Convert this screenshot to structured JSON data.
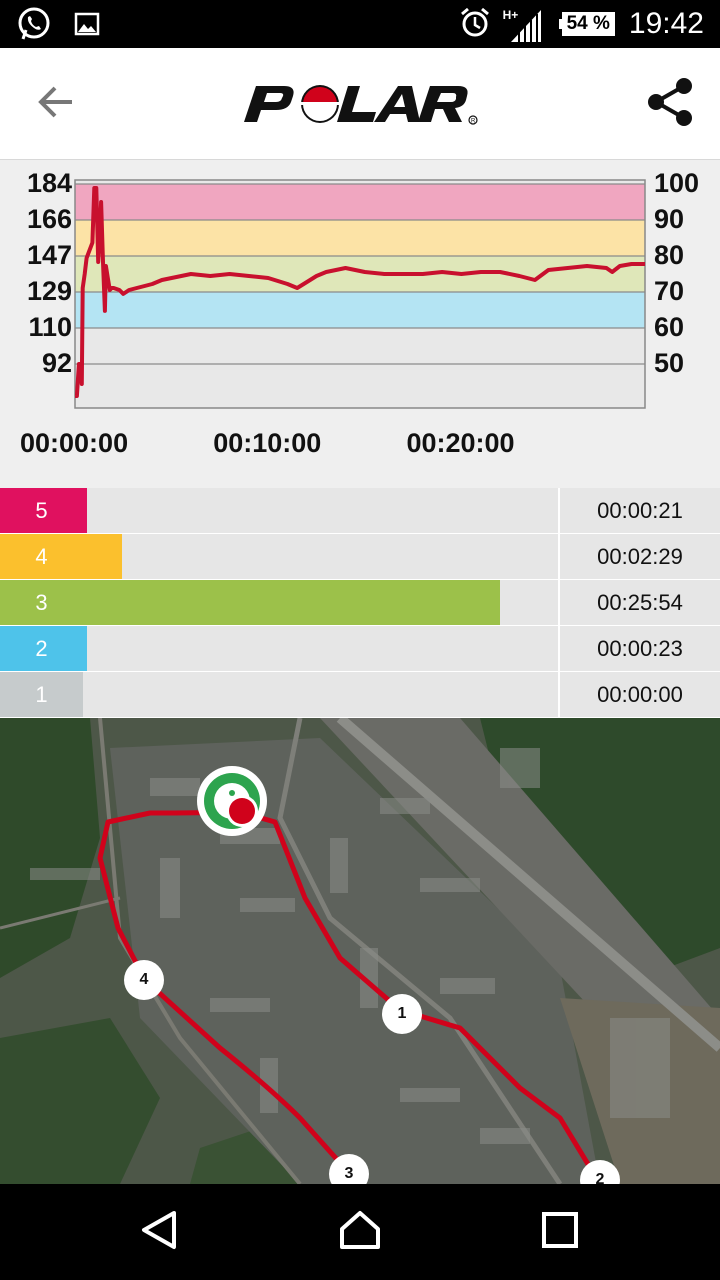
{
  "status_bar": {
    "time": "19:42",
    "battery": "54 %",
    "network": "H+",
    "icons": [
      "whatsapp-icon",
      "image-icon",
      "alarm-icon",
      "signal-icon",
      "battery-icon"
    ]
  },
  "app_bar": {
    "brand": "POLAR",
    "back_icon": "arrow-left-icon",
    "share_icon": "share-icon",
    "brand_color": "#d0021b"
  },
  "hr_chart": {
    "left_ticks": [
      "184",
      "166",
      "147",
      "129",
      "110",
      "92"
    ],
    "right_ticks": [
      "100",
      "90",
      "80",
      "70",
      "60",
      "50"
    ],
    "x_ticks": [
      "00:00:00",
      "00:10:00",
      "00:20:00"
    ]
  },
  "chart_data": {
    "type": "line",
    "title": "",
    "xlabel": "",
    "ylabel": "",
    "y_left_ticks": [
      184,
      166,
      147,
      129,
      110,
      92
    ],
    "y_right_ticks": [
      100,
      90,
      80,
      70,
      60,
      50
    ],
    "ylim": [
      74,
      184
    ],
    "x_ticks": [
      "00:00:00",
      "00:10:00",
      "00:20:00"
    ],
    "xlim_minutes": [
      0,
      29.5
    ],
    "zone_bands": [
      {
        "zone": 5,
        "from": 166,
        "to": 184,
        "color": "#f0a6c0"
      },
      {
        "zone": 4,
        "from": 147,
        "to": 166,
        "color": "#fce3a6"
      },
      {
        "zone": 3,
        "from": 129,
        "to": 147,
        "color": "#dfe7b9"
      },
      {
        "zone": 2,
        "from": 110,
        "to": 129,
        "color": "#b4e4f3"
      }
    ],
    "series": [
      {
        "color": "#c8102e",
        "x": [
          0,
          0.1,
          0.2,
          0.3,
          0.35,
          0.4,
          0.5,
          0.6,
          0.75,
          0.9,
          1.0,
          1.1,
          1.2,
          1.3,
          1.35,
          1.45,
          1.55,
          1.6,
          1.7,
          1.8,
          1.9,
          2.0,
          2.3,
          2.5,
          2.8,
          3.2,
          3.6,
          4.0,
          4.5,
          5.0,
          5.5,
          6.0,
          7.0,
          8.0,
          9.0,
          10.0,
          11.0,
          11.5,
          12.0,
          12.5,
          13.0,
          14.0,
          14.5,
          15.0,
          16.0,
          17.0,
          18.0,
          19.0,
          20.0,
          21.0,
          22.0,
          23.0,
          23.8,
          24.5,
          25.5,
          26.5,
          27.5,
          27.8,
          28.2,
          28.8,
          29.5
        ],
        "y": [
          76,
          76,
          92,
          92,
          82,
          131,
          138,
          146,
          150,
          154,
          182,
          182,
          144,
          162,
          175,
          144,
          119,
          142,
          136,
          130,
          131,
          131,
          130,
          128,
          130,
          131,
          132,
          133,
          135,
          136,
          137,
          138,
          137,
          138,
          137,
          136,
          133,
          131,
          134,
          137,
          139,
          141,
          140,
          139,
          138,
          138,
          138,
          139,
          138,
          139,
          139,
          137,
          135,
          140,
          141,
          142,
          141,
          139,
          142,
          143,
          143
        ]
      }
    ]
  },
  "zones": [
    {
      "number": "5",
      "time": "00:00:21",
      "color": "#e0115f",
      "fraction": 0.008
    },
    {
      "number": "4",
      "time": "00:02:29",
      "color": "#fbc02d",
      "fraction": 0.082
    },
    {
      "number": "3",
      "time": "00:25:54",
      "color": "#9cc14a",
      "fraction": 0.877
    },
    {
      "number": "2",
      "time": "00:00:23",
      "color": "#4ec3ea",
      "fraction": 0.009
    },
    {
      "number": "1",
      "time": "00:00:00",
      "color": "#c6cbcc",
      "fraction": 0.0
    }
  ],
  "map": {
    "laps": [
      "1",
      "2",
      "3",
      "4"
    ],
    "route_color": "#d0021b",
    "start_icon": "start-finish-icon"
  },
  "nav_bar": {
    "back_icon": "nav-back-icon",
    "home_icon": "nav-home-icon",
    "recents_icon": "nav-recents-icon"
  }
}
